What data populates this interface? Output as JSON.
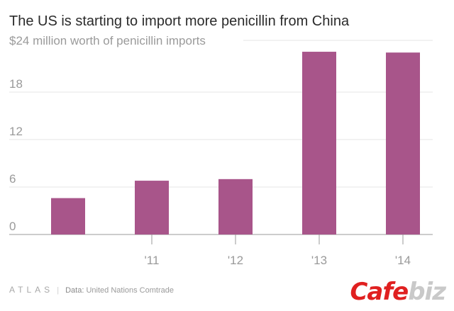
{
  "title": "The US is starting to import more penicillin from China",
  "chart_data": {
    "type": "bar",
    "categories": [
      "",
      "'11",
      "'12",
      "'13",
      "'14"
    ],
    "values": [
      4.6,
      6.8,
      7.0,
      23.1,
      23.0
    ],
    "ylim": [
      0,
      24
    ],
    "yticks": [
      0,
      6,
      12,
      18
    ],
    "ytick_labels": [
      "0",
      "6",
      "12",
      "18"
    ],
    "top_label": "$24 million worth of penicillin imports",
    "bar_color": "#a8558a",
    "grid": true
  },
  "footer": {
    "brand": "ATLAS",
    "source_label": "Data:",
    "source": "United Nations Comtrade"
  },
  "watermark": {
    "part1": "Cafe",
    "part2": "biz"
  }
}
